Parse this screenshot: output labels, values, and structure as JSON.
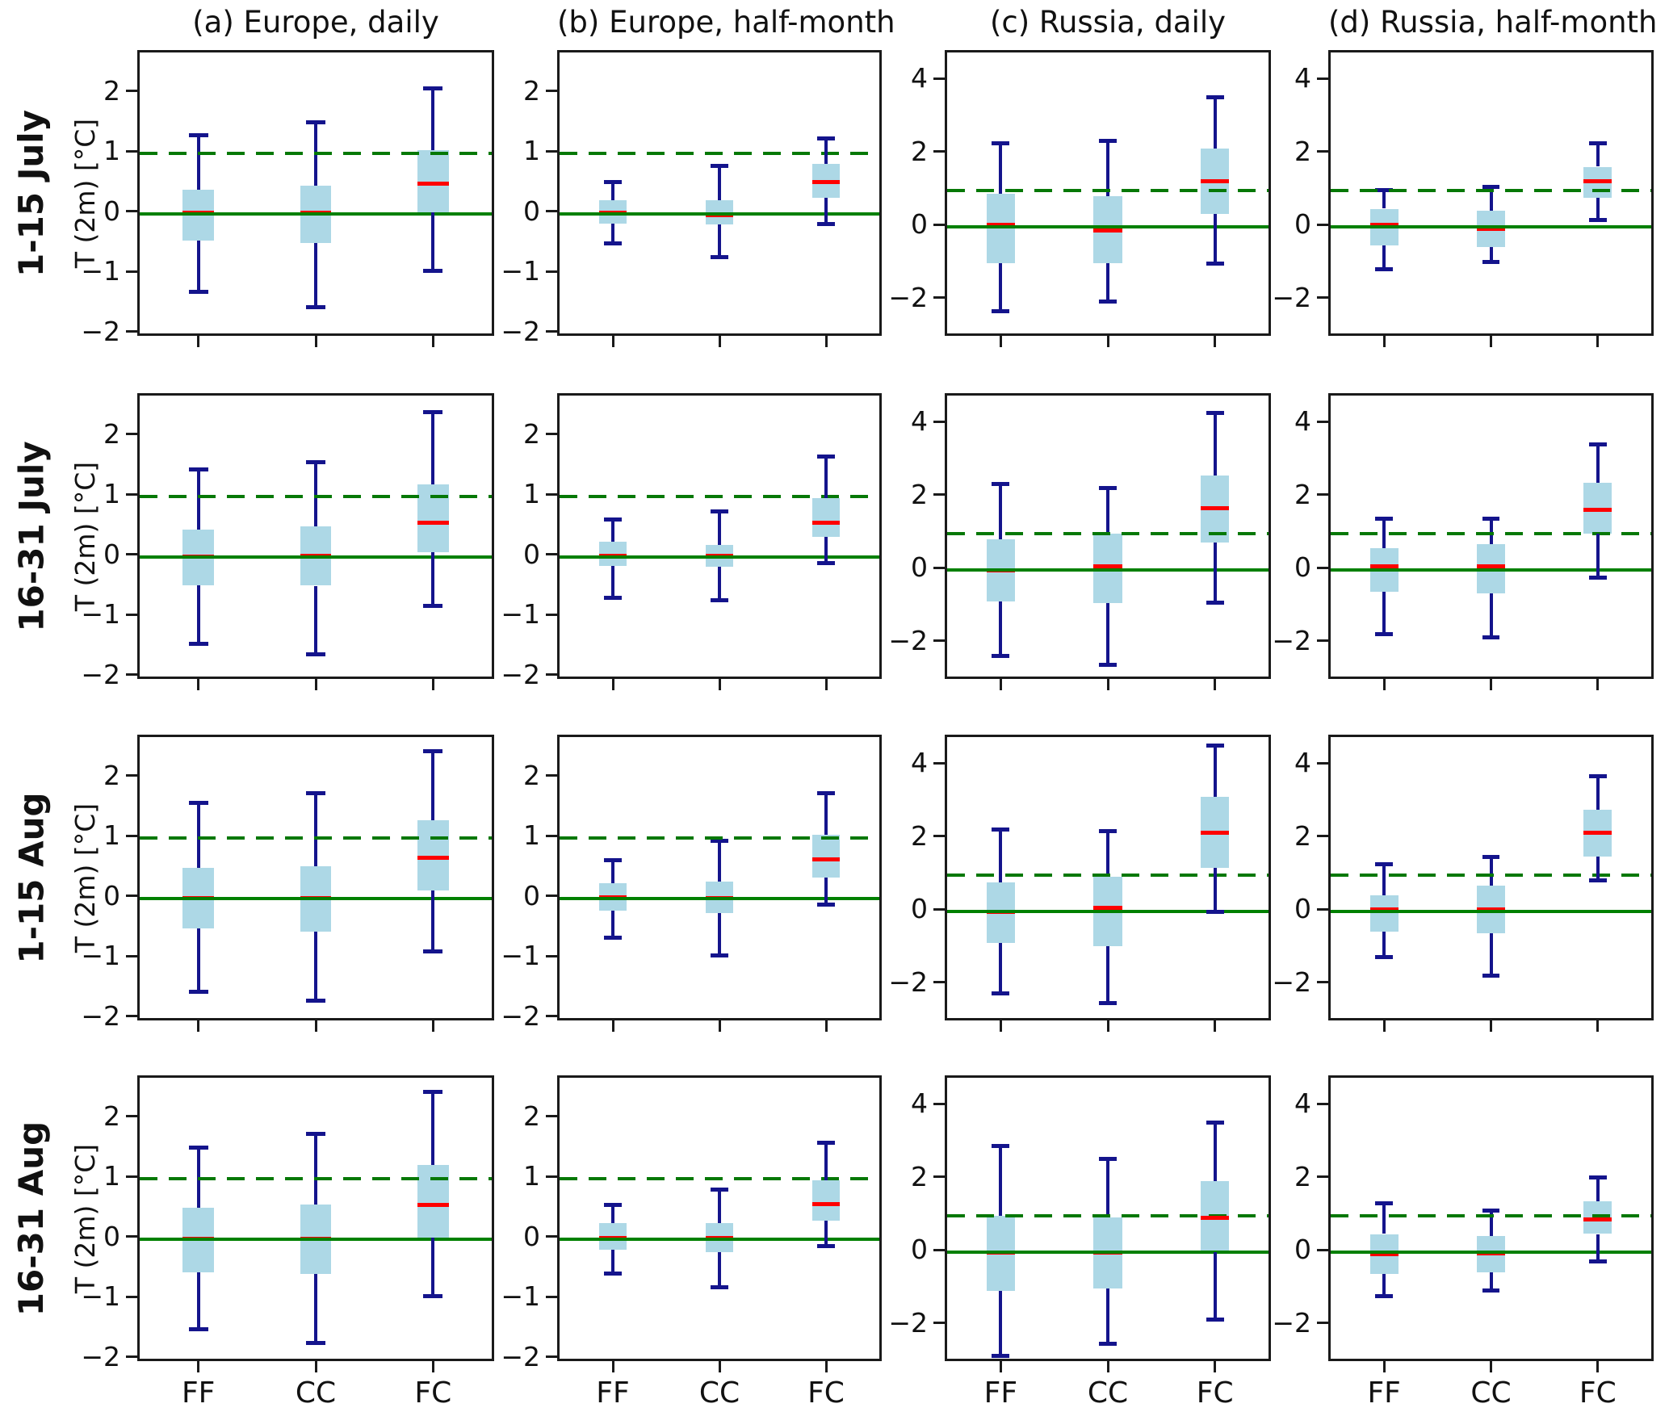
{
  "figure_title": "",
  "ylabel": "T (2m) [°C]",
  "colors": {
    "box_fill": "#ADD8E6",
    "whisker": "#14148C",
    "median": "#FF0000",
    "zero_line": "#008000",
    "threshold_line": "#067806",
    "axis": "#1a1a1a"
  },
  "reference_lines": {
    "zero": 0,
    "threshold": 1
  },
  "chart_data": {
    "type": "box",
    "categories": [
      "FF",
      "CC",
      "FC"
    ],
    "box_value_order": [
      "whisker_low",
      "q1",
      "median",
      "q3",
      "whisker_high"
    ],
    "grid": false,
    "columns": [
      {
        "id": "a",
        "title": "(a) Europe, daily",
        "region": "Europe",
        "resolution": "daily",
        "ylim": [
          -2.07,
          2.68
        ],
        "yticks": [
          -2,
          -1,
          0,
          1,
          2
        ]
      },
      {
        "id": "b",
        "title": "(b) Europe, half-month",
        "region": "Europe",
        "resolution": "half-month",
        "ylim": [
          -2.07,
          2.68
        ],
        "yticks": [
          -2,
          -1,
          0,
          1,
          2
        ]
      },
      {
        "id": "c",
        "title": "(c) Russia, daily",
        "region": "Russia",
        "resolution": "daily",
        "ylim": [
          -3.05,
          4.78
        ],
        "yticks": [
          -2,
          0,
          2,
          4
        ]
      },
      {
        "id": "d",
        "title": "(d) Russia, half-month",
        "region": "Russia",
        "resolution": "half-month",
        "ylim": [
          -3.05,
          4.78
        ],
        "yticks": [
          -2,
          0,
          2,
          4
        ]
      }
    ],
    "rows": [
      {
        "label": "1-15 July",
        "boxes": {
          "a": [
            [
              -1.3,
              -0.45,
              0.02,
              0.4,
              1.3
            ],
            [
              -1.55,
              -0.48,
              0.02,
              0.47,
              1.52
            ],
            [
              -0.95,
              0.02,
              0.5,
              1.05,
              2.08
            ]
          ],
          "b": [
            [
              -0.5,
              -0.17,
              0.01,
              0.22,
              0.53
            ],
            [
              -0.72,
              -0.18,
              -0.02,
              0.23,
              0.8
            ],
            [
              -0.17,
              0.27,
              0.52,
              0.83,
              1.25
            ]
          ],
          "c": [
            [
              -2.3,
              -1.0,
              0.05,
              0.9,
              2.3
            ],
            [
              -2.05,
              -1.0,
              -0.1,
              0.85,
              2.35
            ],
            [
              -1.0,
              0.35,
              1.25,
              2.15,
              3.55
            ]
          ],
          "d": [
            [
              -1.15,
              -0.5,
              0.05,
              0.5,
              1.0
            ],
            [
              -0.95,
              -0.55,
              -0.05,
              0.45,
              1.1
            ],
            [
              0.2,
              0.8,
              1.25,
              1.65,
              2.3
            ]
          ]
        }
      },
      {
        "label": "16-31 July",
        "boxes": {
          "a": [
            [
              -1.45,
              -0.47,
              0.0,
              0.45,
              1.45
            ],
            [
              -1.62,
              -0.48,
              0.02,
              0.5,
              1.57
            ],
            [
              -0.82,
              0.08,
              0.57,
              1.2,
              2.4
            ]
          ],
          "b": [
            [
              -0.68,
              -0.15,
              0.02,
              0.25,
              0.62
            ],
            [
              -0.72,
              -0.17,
              0.02,
              0.2,
              0.75
            ],
            [
              -0.1,
              0.33,
              0.57,
              0.98,
              1.67
            ]
          ],
          "c": [
            [
              -2.35,
              -0.85,
              0.0,
              0.85,
              2.35
            ],
            [
              -2.6,
              -0.9,
              0.1,
              1.0,
              2.25
            ],
            [
              -0.9,
              0.75,
              1.7,
              2.6,
              4.3
            ]
          ],
          "d": [
            [
              -1.75,
              -0.6,
              0.1,
              0.6,
              1.4
            ],
            [
              -1.85,
              -0.65,
              0.1,
              0.7,
              1.4
            ],
            [
              -0.2,
              1.0,
              1.65,
              2.4,
              3.45
            ]
          ]
        }
      },
      {
        "label": "1-15 Aug",
        "boxes": {
          "a": [
            [
              -1.55,
              -0.5,
              0.0,
              0.5,
              1.58
            ],
            [
              -1.7,
              -0.55,
              0.0,
              0.53,
              1.75
            ],
            [
              -0.88,
              0.13,
              0.67,
              1.3,
              2.45
            ]
          ],
          "b": [
            [
              -0.65,
              -0.2,
              0.02,
              0.25,
              0.63
            ],
            [
              -0.95,
              -0.25,
              0.0,
              0.28,
              0.95
            ],
            [
              -0.1,
              0.35,
              0.65,
              1.05,
              1.75
            ]
          ],
          "c": [
            [
              -2.25,
              -0.85,
              0.0,
              0.8,
              2.25
            ],
            [
              -2.5,
              -0.95,
              0.1,
              0.95,
              2.2
            ],
            [
              0.0,
              1.2,
              2.15,
              3.15,
              4.55
            ]
          ],
          "d": [
            [
              -1.25,
              -0.55,
              0.05,
              0.45,
              1.3
            ],
            [
              -1.75,
              -0.6,
              0.05,
              0.7,
              1.5
            ],
            [
              0.85,
              1.5,
              2.15,
              2.8,
              3.7
            ]
          ]
        }
      },
      {
        "label": "16-31 Aug",
        "boxes": {
          "a": [
            [
              -1.5,
              -0.55,
              0.0,
              0.52,
              1.52
            ],
            [
              -1.73,
              -0.58,
              0.0,
              0.57,
              1.75
            ],
            [
              -0.95,
              0.02,
              0.57,
              1.23,
              2.45
            ]
          ],
          "b": [
            [
              -0.57,
              -0.18,
              0.02,
              0.27,
              0.57
            ],
            [
              -0.8,
              -0.22,
              0.02,
              0.27,
              0.82
            ],
            [
              -0.12,
              0.3,
              0.58,
              0.98,
              1.6
            ]
          ],
          "c": [
            [
              -2.85,
              -1.05,
              0.0,
              1.0,
              2.9
            ],
            [
              -2.5,
              -1.0,
              0.0,
              0.95,
              2.55
            ],
            [
              -1.85,
              0.0,
              0.95,
              1.95,
              3.55
            ]
          ],
          "d": [
            [
              -1.2,
              -0.6,
              -0.05,
              0.5,
              1.35
            ],
            [
              -1.05,
              -0.55,
              -0.02,
              0.45,
              1.15
            ],
            [
              -0.25,
              0.5,
              0.9,
              1.4,
              2.05
            ]
          ]
        }
      }
    ]
  }
}
